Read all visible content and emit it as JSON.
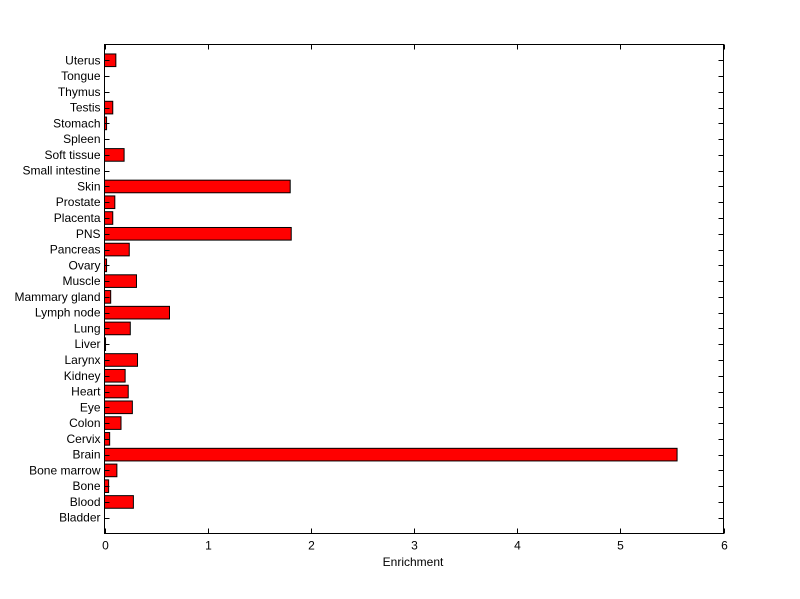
{
  "chart_data": {
    "type": "bar",
    "orientation": "horizontal",
    "title": "",
    "xlabel": "Enrichment",
    "ylabel": "",
    "xlim": [
      0,
      6
    ],
    "xticks": [
      0,
      1,
      2,
      3,
      4,
      5,
      6
    ],
    "grid": false,
    "bar_color": "#ff0000",
    "edge_color": "#000000",
    "categories": [
      "Bladder",
      "Blood",
      "Bone",
      "Bone marrow",
      "Brain",
      "Cervix",
      "Colon",
      "Eye",
      "Heart",
      "Kidney",
      "Larynx",
      "Liver",
      "Lung",
      "Lymph node",
      "Mammary gland",
      "Muscle",
      "Ovary",
      "Pancreas",
      "PNS",
      "Placenta",
      "Prostate",
      "Skin",
      "Small intestine",
      "Soft tissue",
      "Spleen",
      "Stomach",
      "Testis",
      "Thymus",
      "Tongue",
      "Uterus"
    ],
    "values": [
      0,
      0.28,
      0.04,
      0.12,
      5.55,
      0.05,
      0.16,
      0.27,
      0.23,
      0.2,
      0.32,
      0.01,
      0.25,
      0.63,
      0.06,
      0.31,
      0.02,
      0.24,
      1.81,
      0.08,
      0.1,
      1.8,
      0,
      0.19,
      0,
      0.02,
      0.08,
      0,
      0,
      0.11
    ]
  }
}
